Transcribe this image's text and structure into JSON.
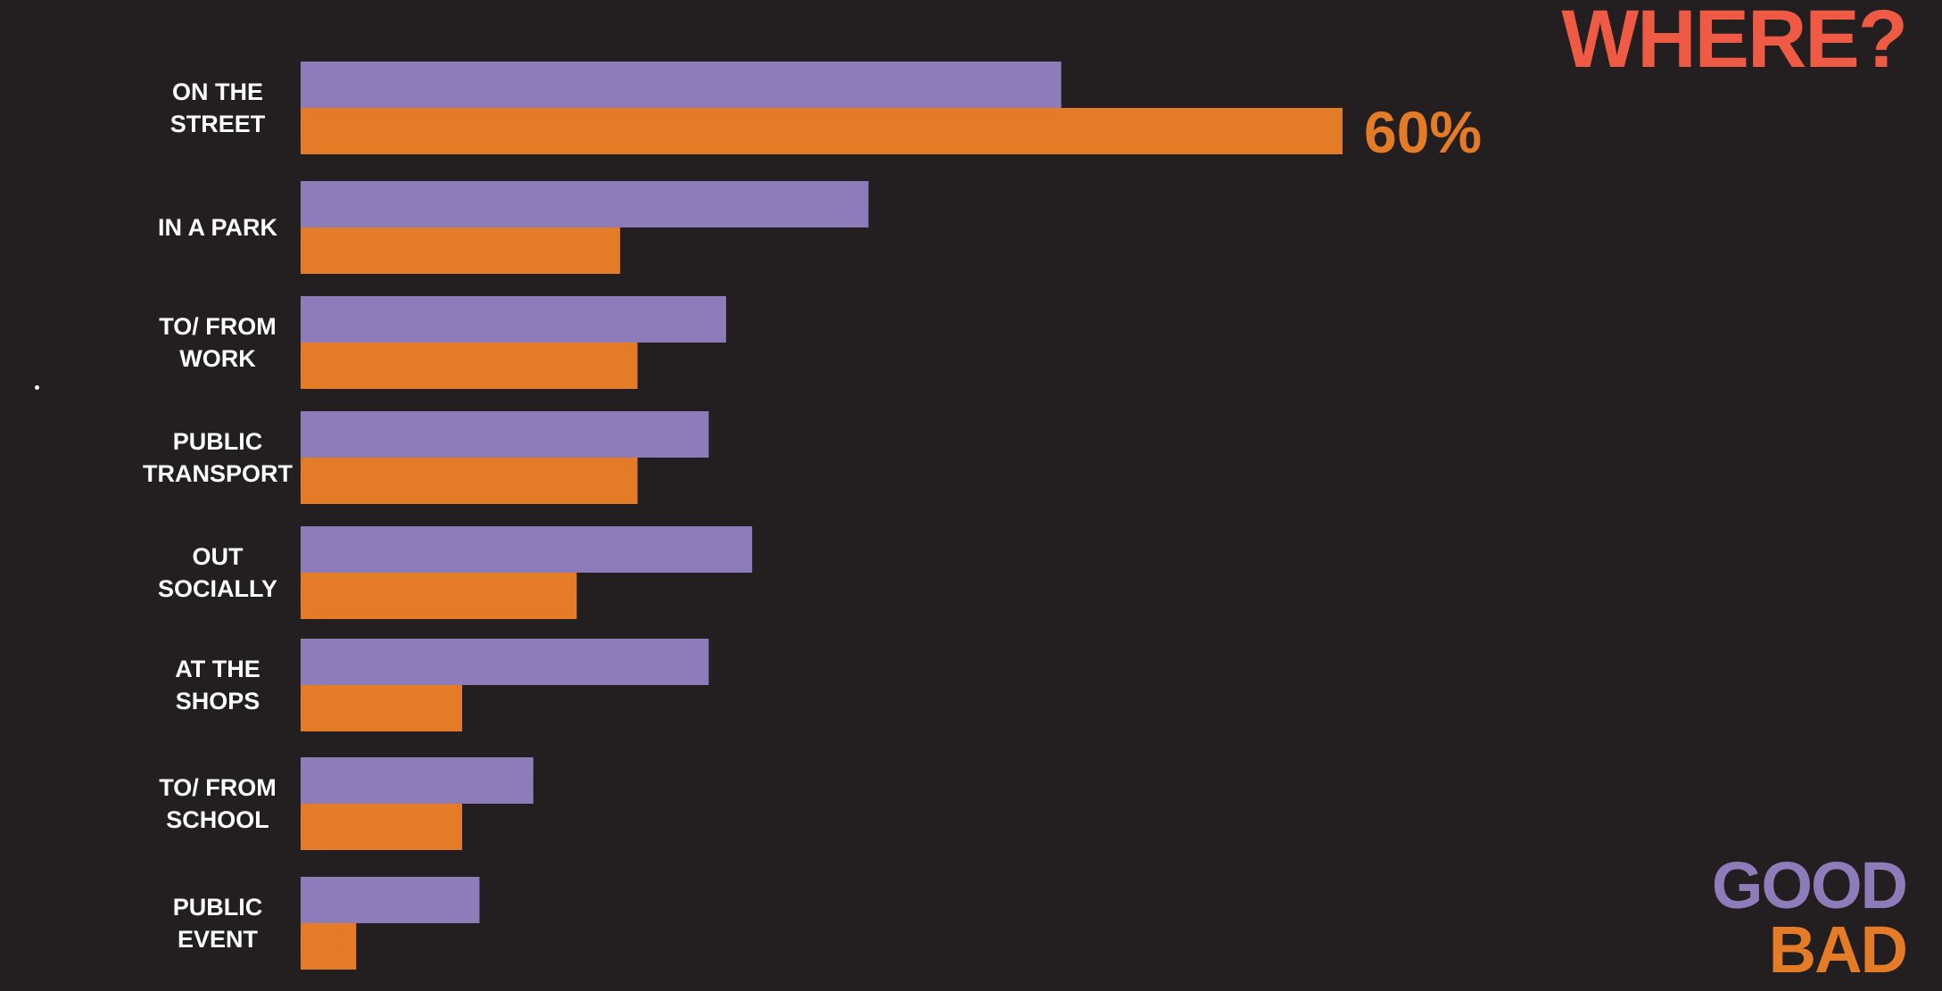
{
  "chart_data": {
    "type": "bar",
    "orientation": "horizontal",
    "title": "WHERE?",
    "categories": [
      [
        "ON THE",
        "STREET"
      ],
      [
        "IN A PARK"
      ],
      [
        "TO/ FROM",
        "WORK"
      ],
      [
        "PUBLIC",
        "TRANSPORT"
      ],
      [
        "OUT",
        "SOCIALLY"
      ],
      [
        "AT THE",
        "SHOPS"
      ],
      [
        "TO/ FROM",
        "SCHOOL"
      ],
      [
        "PUBLIC",
        "EVENT"
      ]
    ],
    "series": [
      {
        "name": "GOOD",
        "color": "#8e7bb9",
        "values": [
          43.8,
          32.7,
          24.5,
          23.5,
          26.0,
          23.5,
          13.4,
          10.3
        ]
      },
      {
        "name": "BAD",
        "color": "#e47b27",
        "values": [
          60,
          18.4,
          19.4,
          19.4,
          15.9,
          9.3,
          9.3,
          3.2
        ]
      }
    ],
    "annotations": [
      {
        "series": "BAD",
        "category_index": 0,
        "text": "60%"
      }
    ],
    "xlim": [
      0,
      60
    ],
    "grid": false,
    "legend_position": "bottom-right",
    "title_color": "#ef5a44",
    "background": "#231f20"
  }
}
